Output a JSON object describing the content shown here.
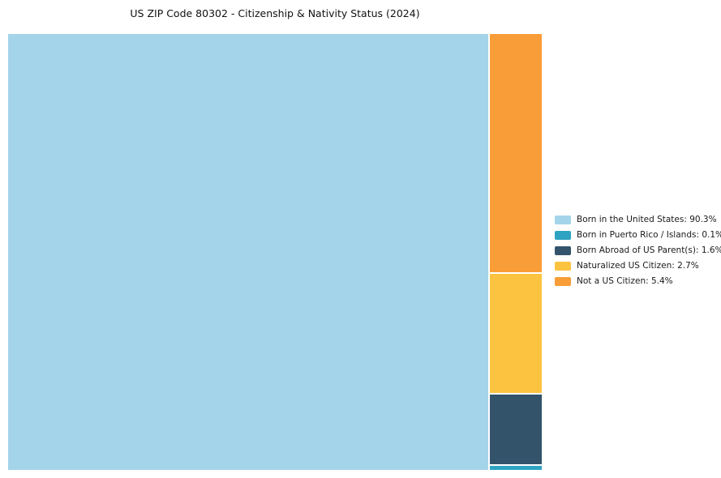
{
  "title": "US ZIP Code 80302 - Citizenship & Nativity Status (2024)",
  "chart_data": {
    "type": "treemap",
    "title": "US ZIP Code 80302 - Citizenship & Nativity Status (2024)",
    "unit": "%",
    "legend_position": "right",
    "items": [
      {
        "label": "Born in the United States",
        "value": 90.3,
        "color": "#A4D4EA",
        "legend_label": "Born in the United States: 90.3%"
      },
      {
        "label": "Born in Puerto Rico / Islands",
        "value": 0.1,
        "color": "#2FA3C2",
        "legend_label": "Born in Puerto Rico / Islands: 0.1%"
      },
      {
        "label": "Born Abroad of US Parent(s)",
        "value": 1.6,
        "color": "#33536B",
        "legend_label": "Born Abroad of US Parent(s): 1.6%"
      },
      {
        "label": "Naturalized US Citizen",
        "value": 2.7,
        "color": "#FCC341",
        "legend_label": "Naturalized US Citizen: 2.7%"
      },
      {
        "label": "Not a US Citizen",
        "value": 5.4,
        "color": "#F99D38",
        "legend_label": "Not a US Citizen: 5.4%"
      }
    ]
  }
}
